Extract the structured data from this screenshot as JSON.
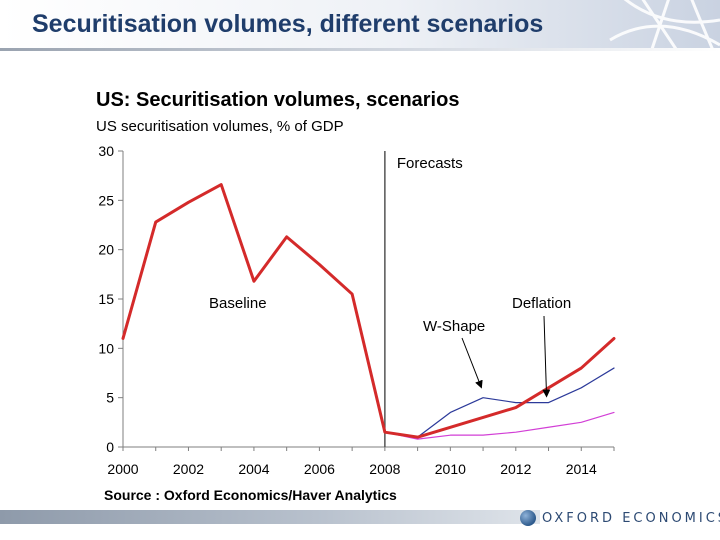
{
  "slide": {
    "title": "Securitisation volumes, different scenarios",
    "footer_logo_text": "OXFORD ECONOMICS"
  },
  "colors": {
    "title_blue": "#1f3d6b",
    "baseline": "#d42a2a",
    "w_shape": "#2c3a9a",
    "deflation": "#d23fd6",
    "axis": "#7f7f7f"
  },
  "chart_data": {
    "type": "line",
    "title": "US: Securitisation volumes, scenarios",
    "subtitle": "US securitisation volumes, % of GDP",
    "source": "Source : Oxford Economics/Haver Analytics",
    "xlim": [
      2000,
      2015
    ],
    "ylim": [
      0,
      30
    ],
    "x_ticks": [
      2000,
      2002,
      2004,
      2006,
      2008,
      2010,
      2012,
      2014
    ],
    "y_ticks": [
      0,
      5,
      10,
      15,
      20,
      25,
      30
    ],
    "grid": false,
    "forecast_line": {
      "x": 2008,
      "label": "Forecasts"
    },
    "series": [
      {
        "name": "Baseline",
        "color": "#d42a2a",
        "x": [
          2000,
          2001,
          2002,
          2003,
          2004,
          2005,
          2006,
          2007,
          2008,
          2009,
          2010,
          2011,
          2012,
          2013,
          2014,
          2015
        ],
        "values": [
          11.0,
          22.8,
          24.8,
          26.6,
          16.8,
          21.3,
          18.5,
          15.5,
          1.5,
          1.0,
          2.0,
          3.0,
          4.0,
          6.0,
          8.0,
          11.0
        ]
      },
      {
        "name": "W-Shape",
        "color": "#2c3a9a",
        "x": [
          2008,
          2009,
          2010,
          2011,
          2012,
          2013,
          2014,
          2015
        ],
        "values": [
          1.5,
          1.0,
          3.5,
          5.0,
          4.5,
          4.5,
          6.0,
          8.0
        ]
      },
      {
        "name": "Deflation",
        "color": "#d23fd6",
        "x": [
          2008,
          2009,
          2010,
          2011,
          2012,
          2013,
          2014,
          2015
        ],
        "values": [
          1.5,
          0.8,
          1.2,
          1.2,
          1.5,
          2.0,
          2.5,
          3.5
        ]
      }
    ],
    "annotations": [
      {
        "text": "Baseline",
        "series": "Baseline"
      },
      {
        "text": "W-Shape",
        "series": "W-Shape",
        "arrow_to": {
          "x": 2011,
          "y": 5.5
        }
      },
      {
        "text": "Deflation",
        "series": "Deflation",
        "arrow_to": {
          "x": 2013,
          "y": 4.6
        }
      }
    ]
  }
}
